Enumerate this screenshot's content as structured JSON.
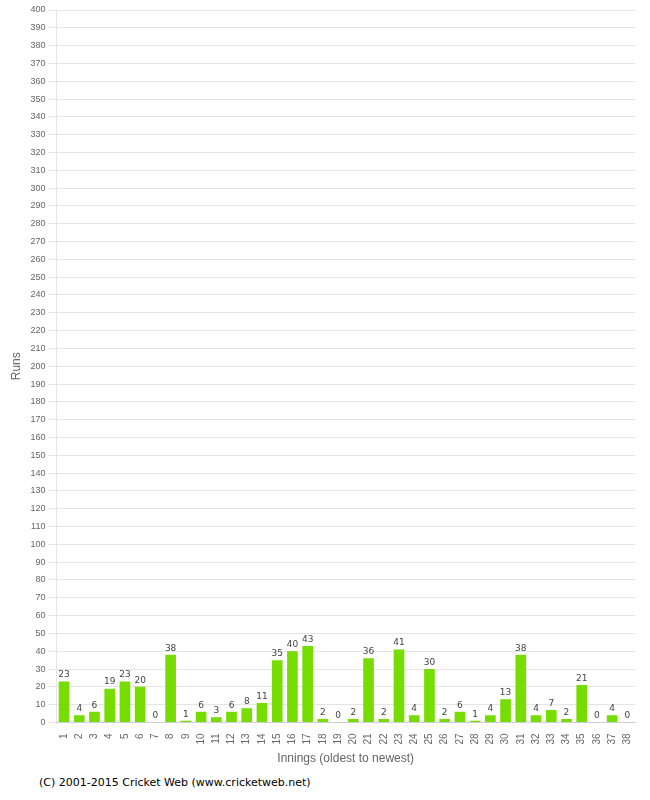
{
  "chart_data": {
    "type": "bar",
    "xlabel": "Innings (oldest to newest)",
    "ylabel": "Runs",
    "footer": "(C) 2001-2015 Cricket Web (www.cricketweb.net)",
    "categories": [
      "1",
      "2",
      "3",
      "4",
      "5",
      "6",
      "7",
      "8",
      "9",
      "10",
      "11",
      "12",
      "13",
      "14",
      "15",
      "16",
      "17",
      "18",
      "19",
      "20",
      "21",
      "22",
      "23",
      "24",
      "25",
      "26",
      "27",
      "28",
      "29",
      "30",
      "31",
      "32",
      "33",
      "34",
      "35",
      "36",
      "37",
      "38"
    ],
    "values": [
      23,
      4,
      6,
      19,
      23,
      20,
      0,
      38,
      1,
      6,
      3,
      6,
      8,
      11,
      35,
      40,
      43,
      2,
      0,
      2,
      36,
      2,
      41,
      4,
      30,
      2,
      6,
      1,
      4,
      13,
      38,
      4,
      7,
      2,
      21,
      0,
      4,
      0
    ],
    "color": "#77dd00",
    "ylim": [
      0,
      400
    ],
    "yticks": [
      0,
      10,
      20,
      30,
      40,
      50,
      60,
      70,
      80,
      90,
      100,
      110,
      120,
      130,
      140,
      150,
      160,
      170,
      180,
      190,
      200,
      210,
      220,
      230,
      240,
      250,
      260,
      270,
      280,
      290,
      300,
      310,
      320,
      330,
      340,
      350,
      360,
      370,
      380,
      390,
      400
    ],
    "grid": true,
    "data_labels": true
  }
}
